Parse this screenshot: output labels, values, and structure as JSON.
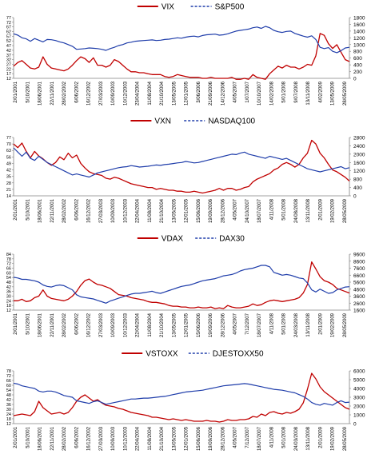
{
  "chart_data": [
    {
      "type": "line",
      "series": [
        {
          "name": "VIX",
          "axis": "left",
          "color": "#C00000",
          "dash": "solid",
          "values": [
            25,
            29,
            31,
            27,
            23,
            22,
            24,
            35,
            27,
            23,
            22,
            21,
            20,
            22,
            26,
            31,
            35,
            33,
            29,
            34,
            26,
            26,
            24,
            26,
            32,
            30,
            26,
            22,
            19,
            19,
            18,
            18,
            17,
            16,
            16,
            16,
            14,
            13,
            14,
            16,
            15,
            14,
            13,
            13,
            13,
            12,
            12,
            13,
            12,
            12,
            12,
            12,
            13,
            11,
            11,
            12,
            11,
            16,
            13,
            12,
            11,
            17,
            21,
            25,
            23,
            26,
            24,
            24,
            22,
            24,
            27,
            26,
            36,
            60,
            58,
            49,
            44,
            48,
            40,
            32,
            30
          ]
        },
        {
          "name": "S&P500",
          "axis": "right",
          "color": "#1F3DAA",
          "dash": "dashed",
          "values": [
            1320,
            1280,
            1200,
            1170,
            1100,
            1180,
            1130,
            1080,
            1150,
            1145,
            1120,
            1080,
            1050,
            1000,
            950,
            860,
            870,
            880,
            900,
            890,
            880,
            860,
            830,
            880,
            920,
            970,
            1000,
            1050,
            1070,
            1100,
            1110,
            1120,
            1130,
            1140,
            1120,
            1130,
            1150,
            1160,
            1180,
            1200,
            1190,
            1220,
            1240,
            1250,
            1230,
            1270,
            1290,
            1300,
            1310,
            1280,
            1290,
            1320,
            1360,
            1400,
            1420,
            1440,
            1460,
            1500,
            1520,
            1480,
            1540,
            1500,
            1420,
            1380,
            1360,
            1390,
            1400,
            1330,
            1290,
            1250,
            1220,
            1260,
            1150,
            920,
            880,
            910,
            800,
            760,
            820,
            900,
            920
          ]
        }
      ],
      "x_labels": [
        "2/01/2001",
        "5/10/2001",
        "18/06/2001",
        "22/11/2001",
        "28/02/2002",
        "6/06/2002",
        "16/12/2002",
        "27/03/2003",
        "10/09/2003",
        "10/12/2003",
        "23/04/2004",
        "11/08/2004",
        "21/10/2004",
        "13/05/2005",
        "12/01/2005",
        "3/06/2006",
        "21/09/2006",
        "14/12/2006",
        "4/05/2007",
        "1/07/2007",
        "10/10/2007",
        "14/02/2008",
        "5/01/2008",
        "9/07/2008",
        "13/11/2008",
        "4/02/2009",
        "13/05/2009",
        "28/05/2009"
      ],
      "y_left_ticks": [
        "12",
        "17",
        "22",
        "27",
        "32",
        "37",
        "42",
        "47",
        "52",
        "57",
        "62",
        "67",
        "72",
        "77"
      ],
      "y_left_range": [
        12,
        77
      ],
      "y_right_ticks": [
        "0",
        "200",
        "400",
        "600",
        "800",
        "1000",
        "1200",
        "1400",
        "1600",
        "1800"
      ],
      "y_right_range": [
        0,
        1800
      ],
      "grid": false,
      "legend_position": "top"
    },
    {
      "type": "line",
      "series": [
        {
          "name": "VXN",
          "axis": "left",
          "color": "#C00000",
          "dash": "solid",
          "values": [
            70,
            66,
            71,
            62,
            55,
            62,
            57,
            54,
            50,
            47,
            50,
            56,
            53,
            60,
            55,
            58,
            49,
            44,
            40,
            38,
            37,
            36,
            33,
            32,
            34,
            33,
            31,
            29,
            27,
            26,
            25,
            24,
            23,
            23,
            21,
            22,
            21,
            20,
            20,
            19,
            19,
            18,
            18,
            19,
            18,
            17,
            18,
            19,
            20,
            22,
            20,
            22,
            22,
            20,
            21,
            23,
            24,
            29,
            32,
            34,
            36,
            38,
            42,
            44,
            48,
            50,
            48,
            45,
            48,
            55,
            60,
            74,
            70,
            60,
            55,
            48,
            42,
            40,
            37,
            34,
            30
          ]
        },
        {
          "name": "NASDAQ100",
          "axis": "right",
          "color": "#1F3DAA",
          "dash": "dashed",
          "values": [
            2300,
            2100,
            1900,
            2100,
            1800,
            1700,
            1900,
            1750,
            1600,
            1500,
            1400,
            1300,
            1200,
            1100,
            1000,
            1050,
            1000,
            950,
            900,
            1000,
            1100,
            1150,
            1200,
            1250,
            1300,
            1350,
            1380,
            1400,
            1450,
            1420,
            1380,
            1400,
            1420,
            1450,
            1480,
            1460,
            1500,
            1520,
            1550,
            1580,
            1600,
            1650,
            1620,
            1580,
            1600,
            1650,
            1700,
            1750,
            1800,
            1850,
            1900,
            1950,
            2000,
            1980,
            2050,
            2100,
            2000,
            1950,
            1900,
            1850,
            1800,
            1900,
            1850,
            1800,
            1750,
            1800,
            1700,
            1600,
            1500,
            1400,
            1300,
            1250,
            1200,
            1150,
            1200,
            1250,
            1300,
            1350,
            1400,
            1300,
            1350
          ]
        }
      ],
      "x_labels": [
        "2/01/2001",
        "5/10/2001",
        "18/06/2001",
        "22/11/2001",
        "28/02/2002",
        "6/06/2002",
        "16/12/2002",
        "27/03/2003",
        "10/09/2003",
        "10/12/2003",
        "22/04/2004",
        "11/08/2004",
        "21/10/2004",
        "13/05/2005",
        "12/01/2005",
        "15/06/2006",
        "19/09/2006",
        "28/12/2006",
        "4/05/2007",
        "24/10/2007",
        "18/07/2007",
        "4/11/2008",
        "5/01/2008",
        "24/08/2008",
        "13/11/2008",
        "2/01/2009",
        "19/02/2009",
        "28/05/2009"
      ],
      "y_left_ticks": [
        "14",
        "21",
        "28",
        "35",
        "42",
        "49",
        "56",
        "63",
        "70",
        "77"
      ],
      "y_left_range": [
        14,
        77
      ],
      "y_right_ticks": [
        "0",
        "400",
        "800",
        "1200",
        "1600",
        "2000",
        "2400",
        "2800"
      ],
      "y_right_range": [
        0,
        2800
      ],
      "grid": false,
      "legend_position": "top"
    },
    {
      "type": "line",
      "series": [
        {
          "name": "VDAX",
          "axis": "left",
          "color": "#C00000",
          "dash": "solid",
          "values": [
            24,
            24,
            26,
            23,
            24,
            28,
            30,
            38,
            30,
            27,
            26,
            25,
            24,
            26,
            30,
            36,
            44,
            50,
            52,
            48,
            45,
            44,
            42,
            40,
            36,
            32,
            31,
            30,
            28,
            27,
            26,
            25,
            23,
            22,
            22,
            21,
            20,
            18,
            17,
            17,
            16,
            16,
            15,
            15,
            16,
            15,
            15,
            16,
            14,
            15,
            14,
            18,
            16,
            15,
            15,
            16,
            17,
            20,
            18,
            19,
            22,
            24,
            25,
            24,
            23,
            24,
            25,
            26,
            28,
            34,
            45,
            74,
            65,
            55,
            50,
            48,
            45,
            40,
            38,
            36,
            34
          ]
        },
        {
          "name": "DAX30",
          "axis": "right",
          "color": "#1F3DAA",
          "dash": "dashed",
          "values": [
            6300,
            6200,
            6000,
            6000,
            5900,
            5800,
            5600,
            5200,
            5000,
            4900,
            5100,
            5200,
            5100,
            4800,
            4500,
            3800,
            3500,
            3400,
            3300,
            3200,
            3000,
            2800,
            2600,
            2900,
            3100,
            3300,
            3500,
            3700,
            3900,
            4000,
            4000,
            4100,
            4200,
            4300,
            4100,
            4000,
            4200,
            4400,
            4600,
            4800,
            5000,
            5100,
            5200,
            5400,
            5600,
            5800,
            5900,
            6000,
            6100,
            6300,
            6500,
            6600,
            6700,
            6900,
            7200,
            7400,
            7500,
            7600,
            7800,
            8000,
            8000,
            7800,
            7000,
            6800,
            6600,
            6700,
            6600,
            6400,
            6200,
            6100,
            5500,
            4500,
            4200,
            4600,
            4300,
            4000,
            4100,
            4500,
            4700,
            4900,
            4950
          ]
        }
      ],
      "x_labels": [
        "2/01/2001",
        "5/10/2001",
        "18/06/2001",
        "22/11/2001",
        "28/02/2002",
        "6/06/2002",
        "16/12/2002",
        "27/03/2003",
        "10/09/2003",
        "10/12/2003",
        "22/04/2004",
        "11/08/2004",
        "21/10/2004",
        "13/05/2005",
        "12/01/2005",
        "15/06/2006",
        "19/09/2006",
        "28/12/2006",
        "4/05/2007",
        "7/12/2007",
        "18/07/2007",
        "4/11/2008",
        "5/01/2008",
        "24/03/2008",
        "13/11/2008",
        "2/01/2009",
        "19/02/2009",
        "28/05/2009"
      ],
      "y_left_ticks": [
        "12",
        "18",
        "24",
        "30",
        "36",
        "42",
        "48",
        "54",
        "60",
        "66",
        "72",
        "78",
        "84"
      ],
      "y_left_range": [
        12,
        84
      ],
      "y_right_ticks": [
        "1600",
        "2600",
        "3600",
        "4600",
        "5600",
        "6600",
        "7600",
        "8600",
        "9600"
      ],
      "y_right_range": [
        1600,
        9600
      ],
      "grid": false,
      "legend_position": "top"
    },
    {
      "type": "line",
      "series": [
        {
          "name": "VSTOXX",
          "axis": "left",
          "color": "#C00000",
          "dash": "solid",
          "values": [
            22,
            23,
            24,
            23,
            22,
            27,
            40,
            32,
            28,
            24,
            25,
            26,
            24,
            26,
            32,
            40,
            45,
            48,
            44,
            40,
            42,
            38,
            35,
            34,
            33,
            31,
            30,
            28,
            26,
            25,
            24,
            23,
            22,
            20,
            20,
            19,
            18,
            17,
            18,
            17,
            16,
            17,
            16,
            15,
            15,
            15,
            16,
            15,
            15,
            14,
            15,
            17,
            16,
            16,
            17,
            17,
            18,
            21,
            20,
            24,
            22,
            26,
            27,
            25,
            24,
            26,
            25,
            27,
            30,
            38,
            55,
            75,
            68,
            58,
            52,
            48,
            44,
            40,
            36,
            32,
            30
          ]
        },
        {
          "name": "DJESTOXX50",
          "axis": "right",
          "color": "#1F3DAA",
          "dash": "dashed",
          "values": [
            4600,
            4500,
            4300,
            4200,
            4100,
            4000,
            3700,
            3600,
            3700,
            3700,
            3600,
            3400,
            3200,
            3100,
            3000,
            2600,
            2500,
            2400,
            2300,
            2500,
            2600,
            2400,
            2200,
            2300,
            2400,
            2500,
            2600,
            2700,
            2800,
            2800,
            2850,
            2900,
            2900,
            2950,
            3000,
            3050,
            3100,
            3200,
            3300,
            3400,
            3500,
            3600,
            3650,
            3700,
            3750,
            3800,
            3900,
            4000,
            4100,
            4200,
            4300,
            4350,
            4400,
            4450,
            4500,
            4550,
            4500,
            4400,
            4300,
            4200,
            4100,
            4000,
            3900,
            3850,
            3800,
            3700,
            3600,
            3500,
            3300,
            3100,
            2800,
            2400,
            2200,
            2100,
            2300,
            2200,
            2100,
            2400,
            2600,
            2400,
            2450
          ]
        }
      ],
      "x_labels": [
        "2/01/2001",
        "5/10/2001",
        "18/06/2001",
        "22/11/2001",
        "28/02/2002",
        "6/06/2002",
        "16/12/2002",
        "27/03/2003",
        "10/09/2003",
        "10/12/2003",
        "22/04/2004",
        "11/08/2004",
        "21/10/2004",
        "13/05/2005",
        "12/01/2005",
        "15/06/2006",
        "19/09/2006",
        "28/12/2006",
        "4/05/2007",
        "7/12/2007",
        "18/07/2007",
        "4/11/2008",
        "5/01/2008",
        "24/03/2008",
        "13/11/2008",
        "2/01/2009",
        "19/02/2009",
        "28/05/2009"
      ],
      "y_left_ticks": [
        "12",
        "18",
        "24",
        "30",
        "36",
        "42",
        "48",
        "54",
        "60",
        "66",
        "72",
        "78"
      ],
      "y_left_range": [
        12,
        78
      ],
      "y_right_ticks": [
        "0",
        "1000",
        "2000",
        "3000",
        "4000",
        "5000",
        "6000"
      ],
      "y_right_range": [
        0,
        6000
      ],
      "grid": false,
      "legend_position": "top"
    }
  ]
}
